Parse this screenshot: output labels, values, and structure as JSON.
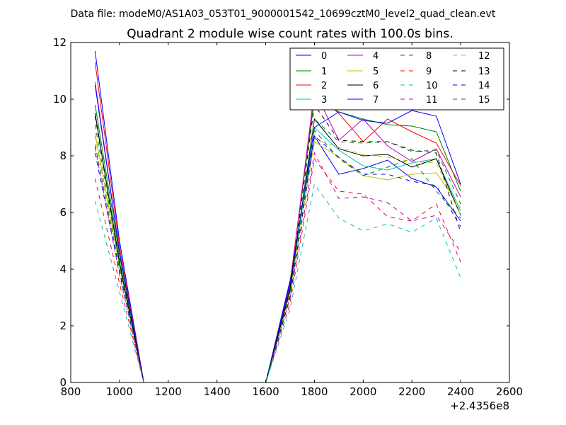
{
  "chart_data": {
    "type": "line",
    "suptitle": "Data file: modeM0/AS1A03_053T01_9000001542_10699cztM0_level2_quad_clean.evt",
    "title": "Quadrant 2 module wise count rates with 100.0s bins.",
    "xlabel": "",
    "ylabel": "",
    "x_offset_label": "+2.4356e8",
    "xlim": [
      800,
      2600
    ],
    "ylim": [
      0,
      12
    ],
    "xticks": [
      800,
      1000,
      1200,
      1400,
      1600,
      1800,
      2000,
      2200,
      2400,
      2600
    ],
    "yticks": [
      0,
      2,
      4,
      6,
      8,
      10,
      12
    ],
    "grid": false,
    "legend_position": "top-right",
    "legend_columns": 4,
    "x": [
      900,
      1000,
      1100,
      1200,
      1300,
      1400,
      1500,
      1600,
      1700,
      1800,
      1900,
      2000,
      2100,
      2200,
      2300,
      2400
    ],
    "series": [
      {
        "name": "0",
        "color": "#0000ff",
        "dash": false,
        "values": [
          11.7,
          5.0,
          0,
          0,
          0,
          0,
          0,
          0,
          3.6,
          8.7,
          7.35,
          7.55,
          7.85,
          7.2,
          6.9,
          5.7
        ]
      },
      {
        "name": "1",
        "color": "#008000",
        "dash": false,
        "values": [
          9.8,
          4.5,
          0,
          0,
          0,
          0,
          0,
          0,
          3.5,
          10.0,
          9.55,
          9.3,
          9.1,
          9.05,
          8.85,
          6.75
        ]
      },
      {
        "name": "2",
        "color": "#ff0000",
        "dash": false,
        "values": [
          11.3,
          4.8,
          0,
          0,
          0,
          0,
          0,
          0,
          3.5,
          10.2,
          9.5,
          8.5,
          9.3,
          8.85,
          8.45,
          6.95
        ]
      },
      {
        "name": "3",
        "color": "#00bfbf",
        "dash": false,
        "values": [
          9.5,
          4.3,
          0,
          0,
          0,
          0,
          0,
          0,
          3.3,
          9.0,
          8.2,
          7.65,
          7.5,
          7.75,
          7.9,
          6.05
        ]
      },
      {
        "name": "4",
        "color": "#bf00bf",
        "dash": false,
        "values": [
          10.6,
          4.6,
          0,
          0,
          0,
          0,
          0,
          0,
          3.4,
          10.3,
          8.55,
          9.3,
          8.35,
          7.8,
          8.25,
          6.55
        ]
      },
      {
        "name": "5",
        "color": "#bfbf00",
        "dash": false,
        "values": [
          8.8,
          4.1,
          0,
          0,
          0,
          0,
          0,
          0,
          3.2,
          8.5,
          7.95,
          7.3,
          7.15,
          7.35,
          7.4,
          6.15
        ]
      },
      {
        "name": "6",
        "color": "#000000",
        "dash": false,
        "values": [
          9.5,
          4.2,
          0,
          0,
          0,
          0,
          0,
          0,
          3.3,
          9.3,
          8.25,
          8.0,
          8.05,
          7.6,
          7.9,
          5.9
        ]
      },
      {
        "name": "7",
        "color": "#0000ff",
        "dash": false,
        "values": [
          10.5,
          4.6,
          0,
          0,
          0,
          0,
          0,
          0,
          3.5,
          9.0,
          9.55,
          9.25,
          9.15,
          9.6,
          9.4,
          7.0
        ]
      },
      {
        "name": "8",
        "color": "#008000",
        "dash": true,
        "values": [
          9.1,
          4.2,
          0,
          0,
          0,
          0,
          0,
          0,
          3.2,
          9.3,
          8.5,
          8.45,
          8.5,
          8.15,
          8.2,
          6.3
        ]
      },
      {
        "name": "9",
        "color": "#ff0000",
        "dash": true,
        "values": [
          7.2,
          3.5,
          0,
          0,
          0,
          0,
          0,
          0,
          2.8,
          7.9,
          6.75,
          6.65,
          5.85,
          5.7,
          6.3,
          4.25
        ]
      },
      {
        "name": "10",
        "color": "#00bfbf",
        "dash": true,
        "values": [
          6.4,
          3.2,
          0,
          0,
          0,
          0,
          0,
          0,
          2.6,
          7.0,
          5.8,
          5.35,
          5.6,
          5.3,
          5.8,
          3.7
        ]
      },
      {
        "name": "11",
        "color": "#bf00bf",
        "dash": true,
        "values": [
          8.3,
          3.8,
          0,
          0,
          0,
          0,
          0,
          0,
          3.0,
          8.1,
          6.5,
          6.55,
          6.35,
          5.7,
          5.9,
          4.6
        ]
      },
      {
        "name": "12",
        "color": "#bfbf00",
        "dash": true,
        "values": [
          8.7,
          4.0,
          0,
          0,
          0,
          0,
          0,
          0,
          3.1,
          8.6,
          8.3,
          8.05,
          7.95,
          7.8,
          7.75,
          5.9
        ]
      },
      {
        "name": "13",
        "color": "#000000",
        "dash": true,
        "values": [
          9.4,
          4.3,
          0,
          0,
          0,
          0,
          0,
          0,
          3.3,
          9.8,
          8.55,
          8.5,
          8.5,
          8.2,
          8.1,
          5.3
        ]
      },
      {
        "name": "14",
        "color": "#0000ff",
        "dash": true,
        "values": [
          8.1,
          3.9,
          0,
          0,
          0,
          0,
          0,
          0,
          3.0,
          8.7,
          7.95,
          7.35,
          7.35,
          7.1,
          6.95,
          5.5
        ]
      },
      {
        "name": "15",
        "color": "#008000",
        "dash": true,
        "values": [
          8.4,
          4.0,
          0,
          0,
          0,
          0,
          0,
          0,
          3.1,
          8.9,
          7.9,
          7.3,
          7.6,
          7.9,
          6.75,
          5.8
        ]
      }
    ]
  }
}
